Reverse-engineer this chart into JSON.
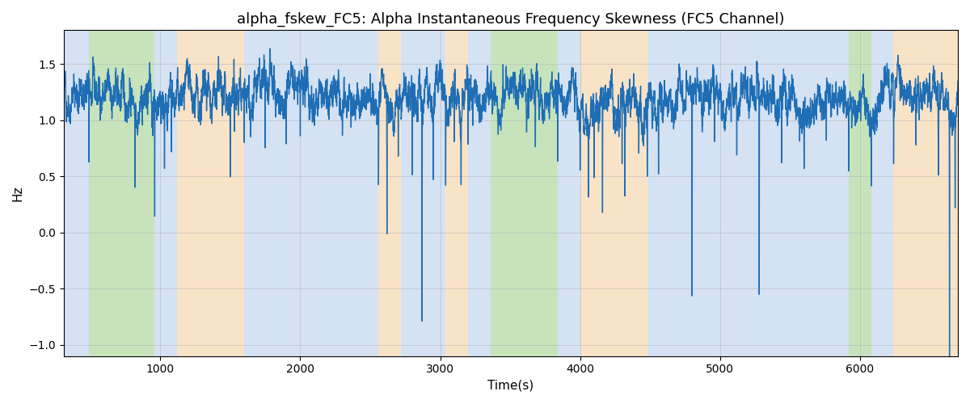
{
  "title": "alpha_fskew_FC5: Alpha Instantaneous Frequency Skewness (FC5 Channel)",
  "xlabel": "Time(s)",
  "ylabel": "Hz",
  "xlim": [
    310,
    6700
  ],
  "ylim": [
    -1.1,
    1.8
  ],
  "line_color": "#1f6eb5",
  "line_width": 1.0,
  "background_color": "#ffffff",
  "grid_color": "#b0b0b0",
  "title_fontsize": 13,
  "label_fontsize": 11,
  "segments": [
    {
      "start": 310,
      "end": 490,
      "color": "#adc6e8",
      "alpha": 0.5
    },
    {
      "start": 490,
      "end": 960,
      "color": "#90c97a",
      "alpha": 0.5
    },
    {
      "start": 960,
      "end": 1120,
      "color": "#adc6e8",
      "alpha": 0.5
    },
    {
      "start": 1120,
      "end": 1600,
      "color": "#f5c990",
      "alpha": 0.5
    },
    {
      "start": 1600,
      "end": 2560,
      "color": "#adc6e8",
      "alpha": 0.5
    },
    {
      "start": 2560,
      "end": 2720,
      "color": "#f5c990",
      "alpha": 0.5
    },
    {
      "start": 2720,
      "end": 3040,
      "color": "#adc6e8",
      "alpha": 0.5
    },
    {
      "start": 3040,
      "end": 3200,
      "color": "#f5c990",
      "alpha": 0.5
    },
    {
      "start": 3200,
      "end": 3360,
      "color": "#adc6e8",
      "alpha": 0.5
    },
    {
      "start": 3360,
      "end": 3840,
      "color": "#90c97a",
      "alpha": 0.5
    },
    {
      "start": 3840,
      "end": 4000,
      "color": "#adc6e8",
      "alpha": 0.5
    },
    {
      "start": 4000,
      "end": 4480,
      "color": "#f5c990",
      "alpha": 0.5
    },
    {
      "start": 4480,
      "end": 5920,
      "color": "#adc6e8",
      "alpha": 0.5
    },
    {
      "start": 5920,
      "end": 6080,
      "color": "#90c97a",
      "alpha": 0.5
    },
    {
      "start": 6080,
      "end": 6240,
      "color": "#adc6e8",
      "alpha": 0.5
    },
    {
      "start": 6240,
      "end": 6700,
      "color": "#f5c990",
      "alpha": 0.5
    }
  ],
  "seed": 42,
  "n_points": 6500,
  "t_start": 310,
  "t_end": 6700,
  "xticks": [
    1000,
    2000,
    3000,
    4000,
    5000,
    6000
  ],
  "yticks": [
    -1.0,
    -0.5,
    0.0,
    0.5,
    1.0,
    1.5
  ]
}
